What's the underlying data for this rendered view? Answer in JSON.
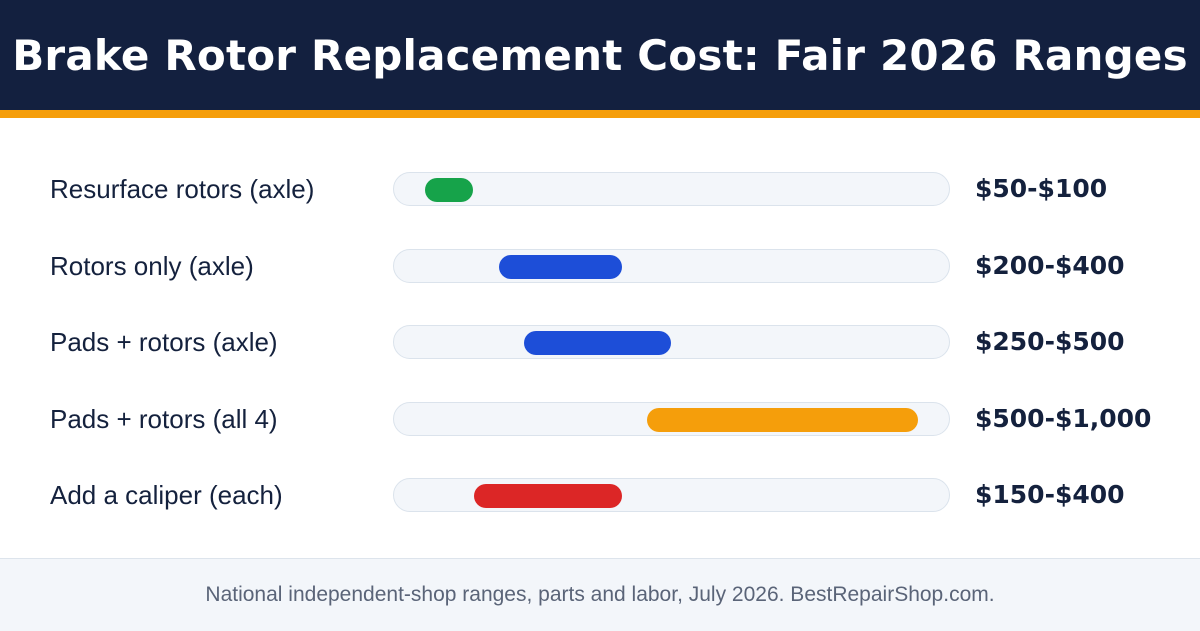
{
  "header": {
    "title": "Brake Rotor Replacement Cost: Fair 2026 Ranges",
    "bg_color": "#13203f",
    "accent_color": "#f59e0b"
  },
  "chart_data": {
    "type": "bar",
    "orientation": "horizontal-range",
    "title": "Brake Rotor Replacement Cost: Fair 2026 Ranges",
    "xlabel": "",
    "ylabel": "",
    "xlim": [
      0,
      1050
    ],
    "grid": false,
    "categories": [
      "Resurface rotors (axle)",
      "Rotors only (axle)",
      "Pads + rotors (axle)",
      "Pads + rotors (all 4)",
      "Add a caliper (each)"
    ],
    "series": [
      {
        "low": [
          50,
          200,
          250,
          500,
          150
        ],
        "high": [
          100,
          400,
          500,
          1000,
          400
        ],
        "value_labels": [
          "$50-$100",
          "$200-$400",
          "$250-$500",
          "$500-$1,000",
          "$150-$400"
        ],
        "colors": [
          "#16a34a",
          "#1d4ed8",
          "#1d4ed8",
          "#f59e0b",
          "#dc2626"
        ]
      }
    ]
  },
  "footer": {
    "note": "National independent-shop ranges, parts and labor, July 2026. BestRepairShop.com."
  }
}
